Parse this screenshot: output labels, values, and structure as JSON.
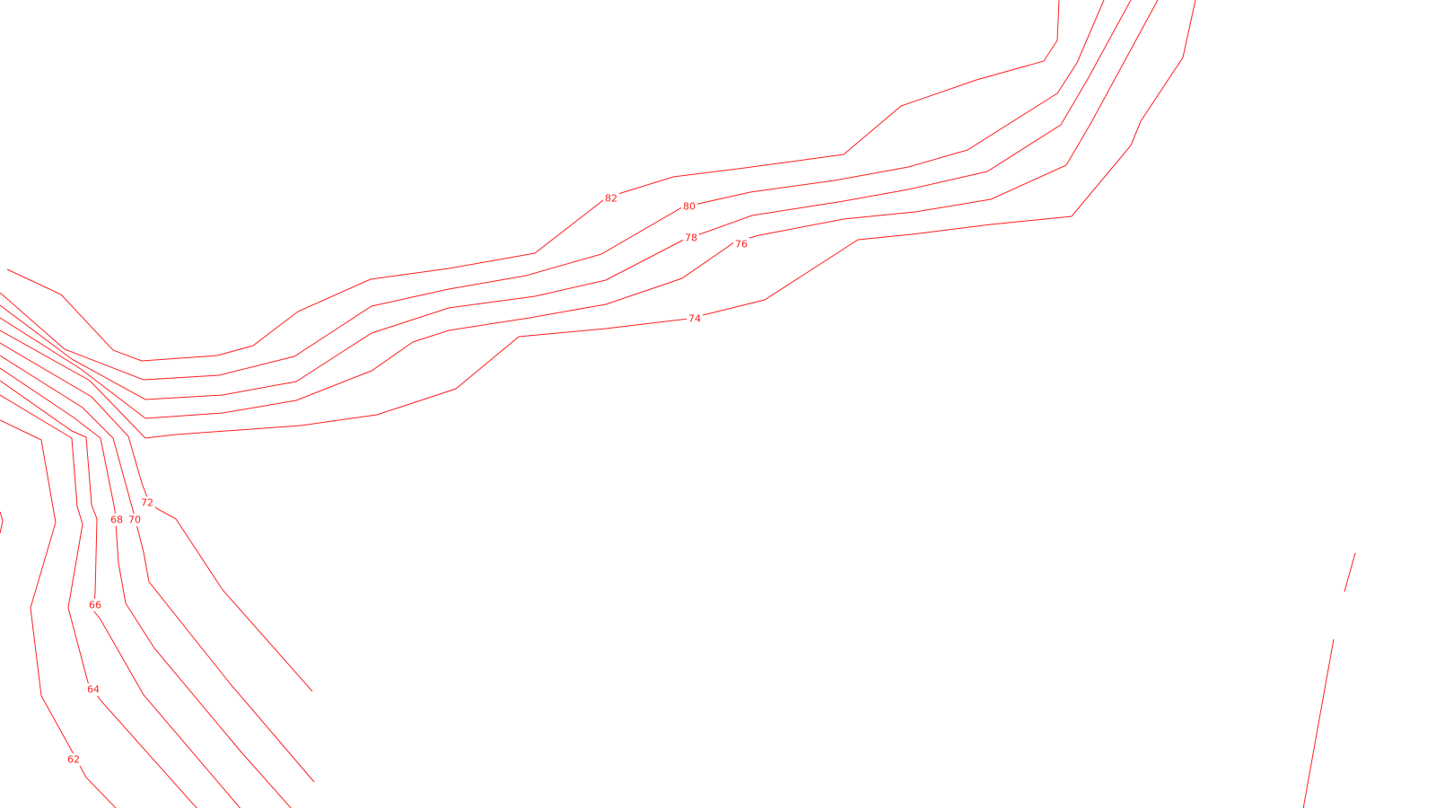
{
  "map": {
    "line_color": "#ff2020",
    "background_color": "#ffffff",
    "contour_labels": [
      "82",
      "80",
      "78",
      "76",
      "74",
      "72",
      "70",
      "68",
      "66",
      "64",
      "62"
    ]
  }
}
